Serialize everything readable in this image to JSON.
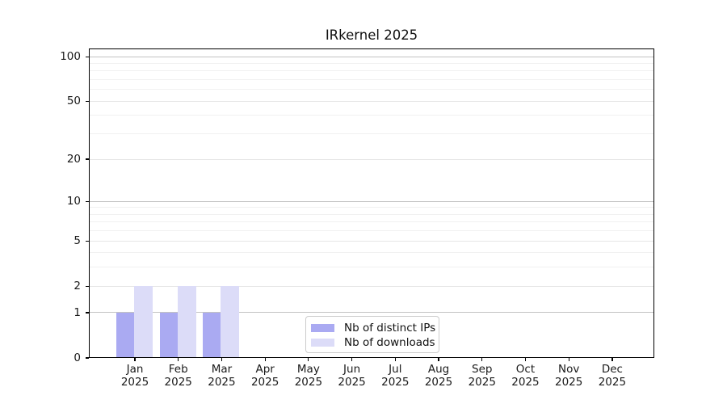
{
  "chart_data": {
    "type": "bar",
    "title": "IRkernel 2025",
    "categories": [
      "Jan\n2025",
      "Feb\n2025",
      "Mar\n2025",
      "Apr\n2025",
      "May\n2025",
      "Jun\n2025",
      "Jul\n2025",
      "Aug\n2025",
      "Sep\n2025",
      "Oct\n2025",
      "Nov\n2025",
      "Dec\n2025"
    ],
    "series": [
      {
        "name": "Nb of distinct IPs",
        "color": "#aaaaf2",
        "values": [
          1,
          1,
          1,
          0,
          0,
          0,
          0,
          0,
          0,
          0,
          0,
          0
        ]
      },
      {
        "name": "Nb of downloads",
        "color": "#dcdcf8",
        "values": [
          2,
          2,
          2,
          0,
          0,
          0,
          0,
          0,
          0,
          0,
          0,
          0
        ]
      }
    ],
    "xlabel": "",
    "ylabel": "",
    "y_scale": "log1p",
    "ylim": [
      0,
      113.5
    ],
    "y_ticks": [
      0,
      1,
      2,
      5,
      10,
      20,
      50,
      100
    ],
    "y_major_gridlines": [
      1,
      10,
      100
    ],
    "y_minor_gridlines": [
      3,
      4,
      6,
      7,
      8,
      9,
      30,
      40,
      60,
      70,
      80,
      90
    ],
    "grid": true,
    "legend_position": "lower center",
    "colors": {
      "axis": "#000000",
      "grid_major": "#c3c3c3",
      "grid_semi": "#e6e6e6",
      "grid_minor": "#f1f1f1",
      "bar_distinct_ips": "#aaaaf2",
      "bar_downloads": "#dcdcf8"
    }
  }
}
